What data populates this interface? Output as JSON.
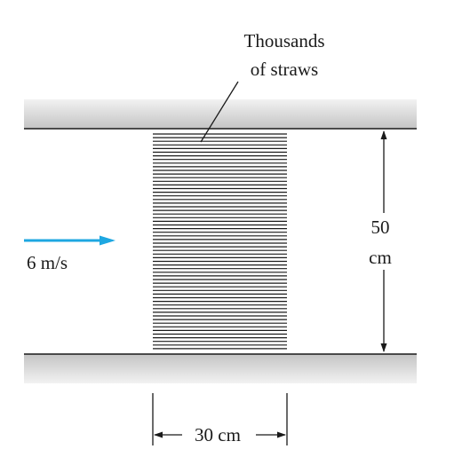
{
  "straws": {
    "label_line1": "Thousands",
    "label_line2": "of straws"
  },
  "height": {
    "value": "50",
    "unit": "cm"
  },
  "flow": {
    "velocity_label": "6 m/s",
    "arrow_color": "#1ea7e1"
  },
  "width": {
    "label": "30 cm"
  },
  "colors": {
    "ink": "#1a1a1a",
    "wall_fill": "#d3d3d3"
  }
}
